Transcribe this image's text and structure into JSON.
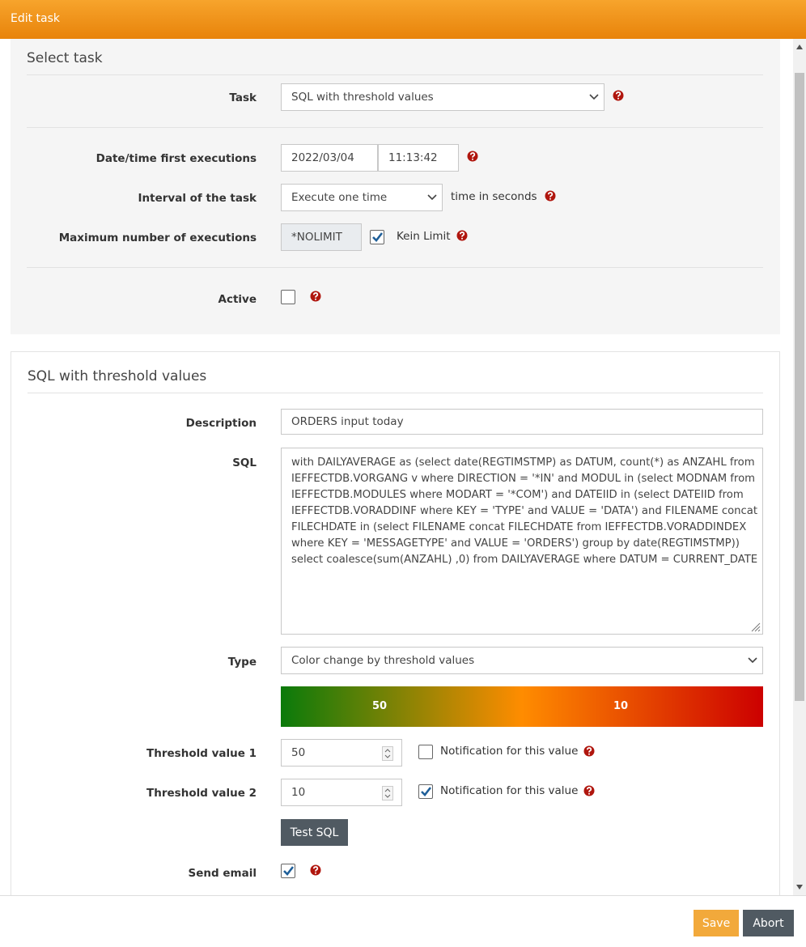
{
  "header": {
    "title": "Edit task"
  },
  "select_panel": {
    "title": "Select task",
    "task": {
      "label": "Task",
      "value": "SQL with threshold values"
    },
    "first_execution": {
      "label": "Date/time first executions",
      "date": "2022/03/04",
      "time": "11:13:42"
    },
    "interval": {
      "label": "Interval of the task",
      "value": "Execute one time",
      "unit": "time in seconds"
    },
    "max_executions": {
      "label": "Maximum number of executions",
      "value": "*NOLIMIT",
      "no_limit_checked": true,
      "no_limit_label": "Kein Limit"
    },
    "active": {
      "label": "Active",
      "checked": false
    }
  },
  "sql_panel": {
    "title": "SQL with threshold values",
    "description": {
      "label": "Description",
      "value": "ORDERS input today"
    },
    "sql": {
      "label": "SQL",
      "lines": [
        "with DAILYAVERAGE as (select date(REGTIMSTMP) as DATUM, count(*) as ANZAHL from",
        "IEFFECTDB.VORGANG v where DIRECTION = '*IN' and MODUL in (select MODNAM from",
        "IEFFECTDB.MODULES where MODART = '*COM') and DATEIID in (select DATEIID from",
        "IEFFECTDB.VORADDINF where KEY = 'TYPE' and VALUE = 'DATA') and FILENAME concat",
        "FILECHDATE in (select FILENAME concat FILECHDATE from IEFFECTDB.VORADDINDEX",
        "where KEY = 'MESSAGETYPE' and VALUE = 'ORDERS') group by date(REGTIMSTMP))",
        "select coalesce(sum(ANZAHL) ,0) from DAILYAVERAGE where DATUM = CURRENT_DATE"
      ]
    },
    "type": {
      "label": "Type",
      "value": "Color change by threshold values"
    },
    "thresholds": [
      {
        "label": "Threshold value 1",
        "value": 50,
        "notify_checked": false,
        "notify_label": "Notification for this value"
      },
      {
        "label": "Threshold value 2",
        "value": 10,
        "notify_checked": true,
        "notify_label": "Notification for this value"
      }
    ],
    "test_button": "Test SQL",
    "send_email": {
      "label": "Send email",
      "checked": true
    }
  },
  "footer": {
    "save": "Save",
    "abort": "Abort"
  }
}
